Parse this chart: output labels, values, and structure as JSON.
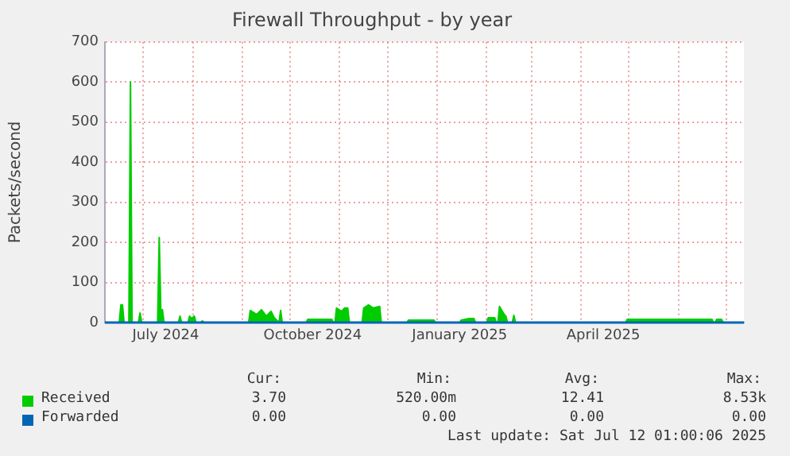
{
  "chart_data": {
    "type": "area",
    "title": "Firewall Throughput - by year",
    "ylabel": "Packets/second",
    "xlim": [
      "2024-06-07",
      "2025-07-12"
    ],
    "ylim": [
      0,
      700
    ],
    "yticks": [
      0,
      100,
      200,
      300,
      400,
      500,
      600,
      700
    ],
    "xticks": [
      {
        "value": "2024-07-01",
        "label": null
      },
      {
        "value": "2024-07-15",
        "label": "July 2024"
      },
      {
        "value": "2024-08-01",
        "label": null
      },
      {
        "value": "2024-09-01",
        "label": null
      },
      {
        "value": "2024-10-01",
        "label": null
      },
      {
        "value": "2024-10-15",
        "label": "October 2024"
      },
      {
        "value": "2024-11-01",
        "label": null
      },
      {
        "value": "2024-12-01",
        "label": null
      },
      {
        "value": "2025-01-01",
        "label": null
      },
      {
        "value": "2025-01-15",
        "label": "January 2025"
      },
      {
        "value": "2025-02-01",
        "label": null
      },
      {
        "value": "2025-03-01",
        "label": null
      },
      {
        "value": "2025-04-01",
        "label": null
      },
      {
        "value": "2025-04-15",
        "label": "April 2025"
      },
      {
        "value": "2025-05-01",
        "label": null
      },
      {
        "value": "2025-06-01",
        "label": null
      },
      {
        "value": "2025-07-01",
        "label": null
      }
    ],
    "grid": true,
    "legend": "bottom",
    "series": [
      {
        "name": "Received",
        "color": "#00cc00",
        "x": [
          "2024-06-07",
          "2024-06-16",
          "2024-06-17",
          "2024-06-18",
          "2024-06-19",
          "2024-06-22",
          "2024-06-23",
          "2024-06-24",
          "2024-06-28",
          "2024-06-29",
          "2024-06-30",
          "2024-07-10",
          "2024-07-11",
          "2024-07-12",
          "2024-07-13",
          "2024-07-14",
          "2024-07-23",
          "2024-07-24",
          "2024-07-25",
          "2024-07-29",
          "2024-07-30",
          "2024-07-31",
          "2024-08-02",
          "2024-08-03",
          "2024-08-06",
          "2024-08-07",
          "2024-08-08",
          "2024-09-05",
          "2024-09-06",
          "2024-09-10",
          "2024-09-13",
          "2024-09-16",
          "2024-09-19",
          "2024-09-21",
          "2024-09-24",
          "2024-09-25",
          "2024-09-26",
          "2024-10-11",
          "2024-10-12",
          "2024-10-27",
          "2024-10-28",
          "2024-10-29",
          "2024-10-30",
          "2024-11-02",
          "2024-11-04",
          "2024-11-06",
          "2024-11-07",
          "2024-11-15",
          "2024-11-16",
          "2024-11-19",
          "2024-11-22",
          "2024-11-26",
          "2024-11-27",
          "2024-12-13",
          "2024-12-14",
          "2024-12-30",
          "2024-12-31",
          "2025-01-15",
          "2025-01-16",
          "2025-01-21",
          "2025-01-24",
          "2025-01-25",
          "2025-02-01",
          "2025-02-02",
          "2025-02-06",
          "2025-02-07",
          "2025-02-08",
          "2025-02-09",
          "2025-02-12",
          "2025-02-13",
          "2025-02-14",
          "2025-02-17",
          "2025-02-18",
          "2025-02-19",
          "2025-04-29",
          "2025-04-30",
          "2025-06-22",
          "2025-06-23",
          "2025-06-24",
          "2025-06-25",
          "2025-06-28",
          "2025-06-29",
          "2025-07-12"
        ],
        "values": [
          0,
          0,
          44,
          44,
          0,
          0,
          600,
          0,
          0,
          24,
          0,
          0,
          212,
          30,
          32,
          0,
          0,
          16,
          0,
          0,
          16,
          10,
          16,
          0,
          0,
          4,
          0,
          0,
          30,
          20,
          32,
          16,
          28,
          12,
          0,
          30,
          0,
          0,
          8,
          8,
          0,
          0,
          36,
          28,
          36,
          36,
          0,
          0,
          36,
          44,
          36,
          40,
          0,
          0,
          6,
          6,
          0,
          0,
          6,
          10,
          10,
          0,
          0,
          12,
          12,
          0,
          0,
          40,
          20,
          16,
          0,
          0,
          18,
          0,
          0,
          8,
          8,
          0,
          0,
          8,
          8,
          0,
          0
        ]
      },
      {
        "name": "Forwarded",
        "type": "line",
        "color": "#0066b3",
        "x": [
          "2024-06-07",
          "2025-07-12"
        ],
        "values": [
          0,
          0
        ]
      }
    ],
    "annotations": [
      "Cur:",
      "Min:",
      "Avg:",
      "Max:",
      "3.70",
      "520.00m",
      "12.41",
      "8.53k",
      "0.00",
      "0.00",
      "0.00",
      "0.00",
      "Last update: Sat Jul 12 01:00:06 2025"
    ]
  }
}
